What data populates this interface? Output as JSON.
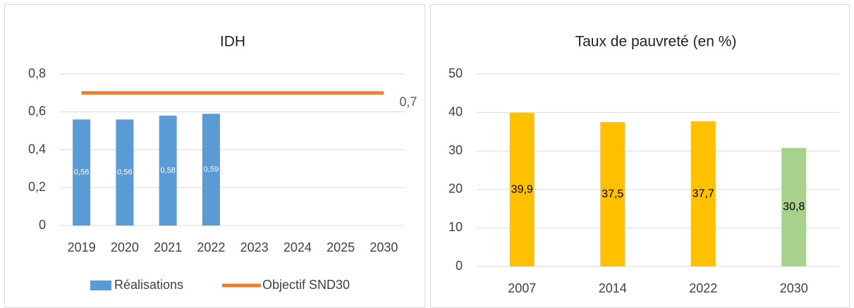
{
  "chart_data": [
    {
      "type": "combo",
      "title": "IDH",
      "categories": [
        "2019",
        "2020",
        "2021",
        "2022",
        "2023",
        "2024",
        "2025",
        "2030"
      ],
      "series": [
        {
          "name": "Réalisations",
          "type": "bar",
          "color": "#5b9bd5",
          "values": [
            0.56,
            0.56,
            0.58,
            0.59,
            null,
            null,
            null,
            null
          ],
          "value_labels": [
            "0,56",
            "0,56",
            "0,58",
            "0,59",
            null,
            null,
            null,
            null
          ]
        },
        {
          "name": "Objectif SND30",
          "type": "line",
          "color": "#ed7d31",
          "values": [
            0.7,
            0.7,
            0.7,
            0.7,
            0.7,
            0.7,
            0.7,
            0.7
          ],
          "value_labels": [
            null,
            null,
            null,
            null,
            null,
            null,
            null,
            "0,7"
          ]
        }
      ],
      "ylim": [
        0,
        0.8
      ],
      "yticks": [
        0,
        {
          "value": 0.2,
          "label": "0,2"
        },
        {
          "value": 0.4,
          "label": "0,4"
        },
        {
          "value": 0.6,
          "label": "0,6"
        },
        {
          "value": 0.8,
          "label": "0,8"
        }
      ],
      "grid": true,
      "legend": "bottom"
    },
    {
      "type": "bar",
      "title": "Taux de pauvreté (en %)",
      "categories": [
        "2007",
        "2014",
        "2022",
        "2030"
      ],
      "values": [
        39.9,
        37.5,
        37.7,
        30.8
      ],
      "value_labels": [
        "39,9",
        "37,5",
        "37,7",
        "30,8"
      ],
      "colors": [
        "#ffc000",
        "#ffc000",
        "#ffc000",
        "#a9d18e"
      ],
      "ylim": [
        0,
        50
      ],
      "yticks": [
        0,
        10,
        20,
        30,
        40,
        50
      ],
      "grid": true
    }
  ]
}
